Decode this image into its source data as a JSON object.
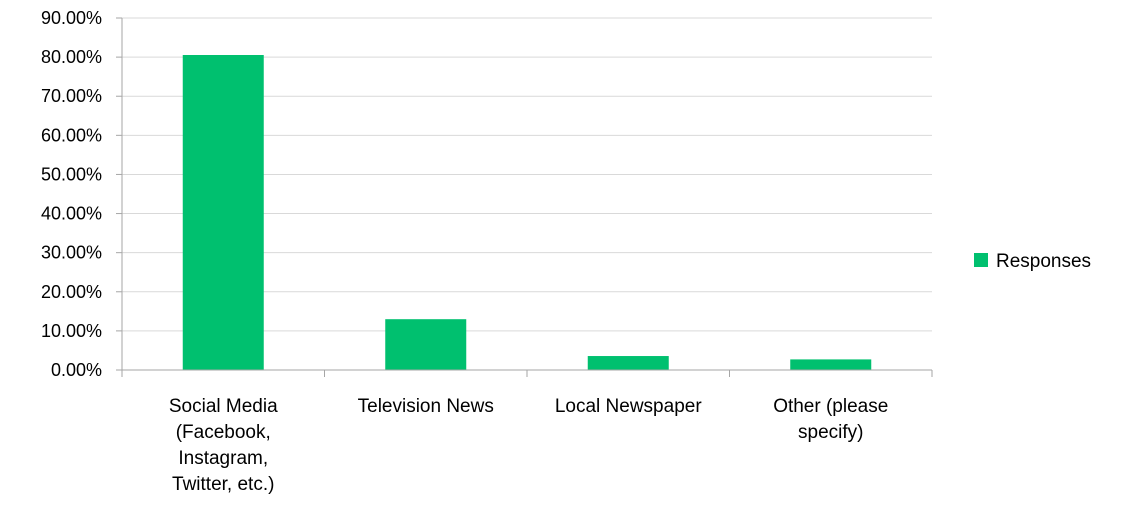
{
  "chart_data": {
    "type": "bar",
    "categories": [
      [
        "Social Media",
        "(Facebook,",
        "Instagram,",
        "Twitter, etc.)"
      ],
      [
        "Television News"
      ],
      [
        "Local Newspaper"
      ],
      [
        "Other (please",
        "specify)"
      ]
    ],
    "series": [
      {
        "name": "Responses",
        "values": [
          0.8054,
          0.1299,
          0.0357,
          0.0271
        ],
        "color": "#00C06F"
      }
    ],
    "ylim": [
      0,
      0.9
    ],
    "ytick_step": 0.1,
    "ytick_labels": [
      "0.00%",
      "10.00%",
      "20.00%",
      "30.00%",
      "40.00%",
      "50.00%",
      "60.00%",
      "70.00%",
      "80.00%",
      "90.00%"
    ],
    "grid": true,
    "gridline_color": "#D9D9D9",
    "axis_color": "#A6A6A6",
    "legend": {
      "position": "right",
      "label": "Responses"
    },
    "title": "",
    "xlabel": "",
    "ylabel": ""
  }
}
